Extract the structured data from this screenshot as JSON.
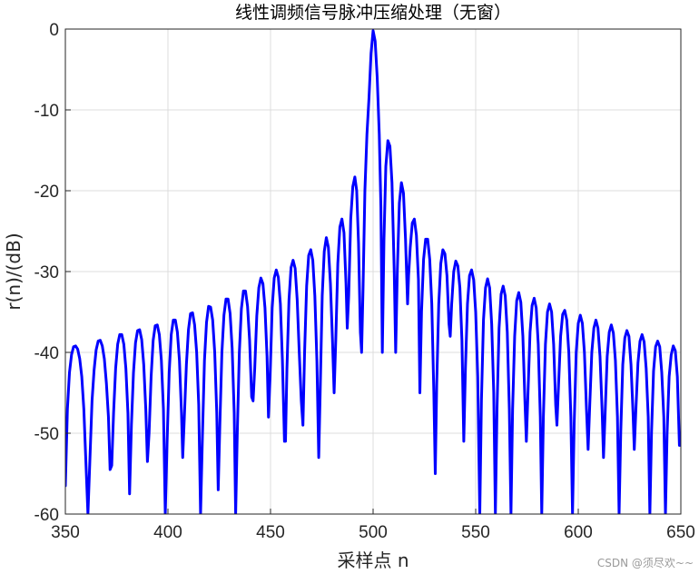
{
  "chart_data": {
    "type": "line",
    "title": "线性调频信号脉冲压缩处理（无窗）",
    "xlabel": "采样点 n",
    "ylabel": "r(n)/(dB)",
    "xlim": [
      350,
      650
    ],
    "ylim": [
      -60,
      0
    ],
    "xticks": [
      350,
      400,
      450,
      500,
      550,
      600,
      650
    ],
    "yticks": [
      0,
      -10,
      -20,
      -30,
      -40,
      -50,
      -60
    ],
    "grid": true,
    "series": [
      {
        "color": "#0000FF",
        "points": [
          [
            350,
            -56.5
          ],
          [
            351,
            -47
          ],
          [
            352,
            -42.5
          ],
          [
            353,
            -40.3
          ],
          [
            354,
            -39.3
          ],
          [
            355,
            -39.2
          ],
          [
            356,
            -39.6
          ],
          [
            357,
            -40.8
          ],
          [
            358,
            -43
          ],
          [
            359,
            -47
          ],
          [
            360,
            -53.5
          ],
          [
            361,
            -60
          ],
          [
            362,
            -53
          ],
          [
            363,
            -46
          ],
          [
            364,
            -42.2
          ],
          [
            365,
            -39.7
          ],
          [
            366,
            -38.6
          ],
          [
            367,
            -38.5
          ],
          [
            368,
            -39.2
          ],
          [
            369,
            -40.8
          ],
          [
            370,
            -43.8
          ],
          [
            371,
            -48
          ],
          [
            371.8,
            -54.5
          ],
          [
            372.6,
            -54
          ],
          [
            373.5,
            -47.5
          ],
          [
            374.5,
            -42
          ],
          [
            375.5,
            -39
          ],
          [
            376.5,
            -37.8
          ],
          [
            377.5,
            -37.8
          ],
          [
            378.5,
            -39
          ],
          [
            379.5,
            -42
          ],
          [
            380.5,
            -47.5
          ],
          [
            381.3,
            -57.5
          ],
          [
            382.2,
            -49
          ],
          [
            383.2,
            -42.5
          ],
          [
            384.2,
            -38.8
          ],
          [
            385.2,
            -37.3
          ],
          [
            386.2,
            -37.2
          ],
          [
            387.2,
            -38.4
          ],
          [
            388.2,
            -41.5
          ],
          [
            389.2,
            -47
          ],
          [
            390,
            -53.5
          ],
          [
            390.8,
            -50
          ],
          [
            391.8,
            -43
          ],
          [
            392.8,
            -38.5
          ],
          [
            393.8,
            -36.7
          ],
          [
            394.8,
            -36.6
          ],
          [
            395.8,
            -37.8
          ],
          [
            396.8,
            -41
          ],
          [
            397.8,
            -47
          ],
          [
            398.7,
            -60
          ],
          [
            399.6,
            -51
          ],
          [
            400.6,
            -42.5
          ],
          [
            401.6,
            -37.8
          ],
          [
            402.6,
            -36
          ],
          [
            403.6,
            -36
          ],
          [
            404.6,
            -37.5
          ],
          [
            405.6,
            -41
          ],
          [
            406.6,
            -47.5
          ],
          [
            407.2,
            -53
          ],
          [
            408,
            -48
          ],
          [
            409,
            -41.5
          ],
          [
            410,
            -37.2
          ],
          [
            411,
            -35.2
          ],
          [
            412,
            -35.1
          ],
          [
            413,
            -36.6
          ],
          [
            414,
            -40
          ],
          [
            415,
            -46.5
          ],
          [
            415.9,
            -60
          ],
          [
            416.8,
            -50.5
          ],
          [
            417.8,
            -41
          ],
          [
            418.8,
            -36.3
          ],
          [
            419.8,
            -34.3
          ],
          [
            420.8,
            -34.4
          ],
          [
            421.8,
            -36
          ],
          [
            422.8,
            -40
          ],
          [
            423.8,
            -47.5
          ],
          [
            424.5,
            -57
          ],
          [
            425.3,
            -49
          ],
          [
            426.3,
            -40
          ],
          [
            427.3,
            -35.4
          ],
          [
            428.3,
            -33.4
          ],
          [
            429.3,
            -33.4
          ],
          [
            430.3,
            -35.2
          ],
          [
            431.3,
            -39.5
          ],
          [
            432.3,
            -47.5
          ],
          [
            433,
            -60
          ],
          [
            433.8,
            -50
          ],
          [
            434.8,
            -40
          ],
          [
            435.8,
            -34.6
          ],
          [
            436.8,
            -32.4
          ],
          [
            437.8,
            -32.4
          ],
          [
            438.8,
            -34.3
          ],
          [
            439.8,
            -38.5
          ],
          [
            440.8,
            -45.5
          ],
          [
            441.5,
            -46
          ],
          [
            442.3,
            -42
          ],
          [
            443.3,
            -35.5
          ],
          [
            444.3,
            -32
          ],
          [
            445.3,
            -30.8
          ],
          [
            446.3,
            -31.5
          ],
          [
            447.3,
            -34.5
          ],
          [
            448.3,
            -40.5
          ],
          [
            449,
            -48
          ],
          [
            449.8,
            -43
          ],
          [
            450.8,
            -34.5
          ],
          [
            451.8,
            -30.8
          ],
          [
            452.8,
            -29.8
          ],
          [
            453.8,
            -30.7
          ],
          [
            454.8,
            -34
          ],
          [
            455.8,
            -41
          ],
          [
            456.8,
            -51
          ],
          [
            457.3,
            -51
          ],
          [
            458,
            -42
          ],
          [
            459,
            -33.5
          ],
          [
            460,
            -29.5
          ],
          [
            461,
            -28.6
          ],
          [
            462,
            -29.6
          ],
          [
            463,
            -33.5
          ],
          [
            464,
            -40
          ],
          [
            465,
            -46
          ],
          [
            465.8,
            -49
          ],
          [
            466.6,
            -40
          ],
          [
            467.6,
            -31.8
          ],
          [
            468.6,
            -28
          ],
          [
            469.6,
            -27.3
          ],
          [
            470.6,
            -28.6
          ],
          [
            471.6,
            -33
          ],
          [
            472.6,
            -41
          ],
          [
            473.5,
            -53
          ],
          [
            474.2,
            -45
          ],
          [
            475.2,
            -33
          ],
          [
            476.2,
            -27.5
          ],
          [
            477.2,
            -25.8
          ],
          [
            478.2,
            -27
          ],
          [
            479.2,
            -31.5
          ],
          [
            480.2,
            -38.5
          ],
          [
            481,
            -45
          ],
          [
            481.8,
            -38.5
          ],
          [
            482.8,
            -29
          ],
          [
            483.8,
            -24.5
          ],
          [
            484.8,
            -23.5
          ],
          [
            485.8,
            -25.2
          ],
          [
            486.8,
            -31.5
          ],
          [
            487.4,
            -37
          ],
          [
            488.1,
            -33
          ],
          [
            489.1,
            -23.5
          ],
          [
            490.1,
            -19.5
          ],
          [
            491.1,
            -18.3
          ],
          [
            492,
            -20
          ],
          [
            492.9,
            -26.5
          ],
          [
            493.8,
            -37.5
          ],
          [
            494.4,
            -40
          ],
          [
            495.1,
            -32
          ],
          [
            496,
            -20
          ],
          [
            497,
            -13
          ],
          [
            498,
            -8.5
          ],
          [
            499,
            -3
          ],
          [
            500,
            -0.2
          ],
          [
            501,
            -1.5
          ],
          [
            502,
            -6
          ],
          [
            503,
            -13
          ],
          [
            503.8,
            -22
          ],
          [
            504.5,
            -40
          ],
          [
            505.3,
            -26
          ],
          [
            506.2,
            -17
          ],
          [
            507.2,
            -13.8
          ],
          [
            508.2,
            -14.5
          ],
          [
            509.2,
            -19
          ],
          [
            510.3,
            -30
          ],
          [
            511,
            -40
          ],
          [
            511.8,
            -30
          ],
          [
            512.8,
            -21.5
          ],
          [
            513.8,
            -19
          ],
          [
            514.8,
            -20.3
          ],
          [
            515.8,
            -26
          ],
          [
            516.8,
            -34
          ],
          [
            517.3,
            -30.5
          ],
          [
            518.1,
            -27
          ],
          [
            519.1,
            -24
          ],
          [
            520.1,
            -23.5
          ],
          [
            521.1,
            -25.5
          ],
          [
            522.1,
            -31
          ],
          [
            522.8,
            -45
          ],
          [
            523.6,
            -35
          ],
          [
            524.6,
            -28.5
          ],
          [
            525.6,
            -26
          ],
          [
            526.6,
            -26
          ],
          [
            527.6,
            -28.5
          ],
          [
            528.6,
            -34
          ],
          [
            529.6,
            -45
          ],
          [
            530.3,
            -55
          ],
          [
            531,
            -44
          ],
          [
            532,
            -34
          ],
          [
            533,
            -29
          ],
          [
            534,
            -27.3
          ],
          [
            535,
            -27.8
          ],
          [
            536,
            -30.5
          ],
          [
            537,
            -36.5
          ],
          [
            537.6,
            -38
          ],
          [
            538.3,
            -34
          ],
          [
            539.3,
            -30
          ],
          [
            540.3,
            -28.7
          ],
          [
            541.3,
            -29.3
          ],
          [
            542.3,
            -32
          ],
          [
            543.3,
            -38.5
          ],
          [
            544.2,
            -51
          ],
          [
            545,
            -42
          ],
          [
            546,
            -34
          ],
          [
            547,
            -30.5
          ],
          [
            548,
            -29.8
          ],
          [
            549,
            -31
          ],
          [
            550,
            -35
          ],
          [
            551,
            -43
          ],
          [
            552,
            -60
          ],
          [
            552.8,
            -46
          ],
          [
            553.8,
            -36
          ],
          [
            554.8,
            -32
          ],
          [
            555.8,
            -30.9
          ],
          [
            556.8,
            -32
          ],
          [
            557.8,
            -36.5
          ],
          [
            558.8,
            -45
          ],
          [
            559.6,
            -60
          ],
          [
            560.4,
            -47
          ],
          [
            561.4,
            -37
          ],
          [
            562.4,
            -32.8
          ],
          [
            563.4,
            -31.8
          ],
          [
            564.4,
            -33
          ],
          [
            565.4,
            -37.5
          ],
          [
            566.4,
            -47
          ],
          [
            567.2,
            -60
          ],
          [
            568,
            -47
          ],
          [
            569,
            -38
          ],
          [
            570,
            -33.6
          ],
          [
            571,
            -32.6
          ],
          [
            572,
            -33.8
          ],
          [
            573,
            -38
          ],
          [
            574,
            -46
          ],
          [
            574.7,
            -51
          ],
          [
            575.5,
            -45
          ],
          [
            576.5,
            -37.5
          ],
          [
            577.5,
            -34.2
          ],
          [
            578.5,
            -33.3
          ],
          [
            579.5,
            -34.5
          ],
          [
            580.5,
            -39
          ],
          [
            581.5,
            -48
          ],
          [
            582.2,
            -60
          ],
          [
            583,
            -48
          ],
          [
            584,
            -39
          ],
          [
            585,
            -35
          ],
          [
            586,
            -34
          ],
          [
            587,
            -35
          ],
          [
            588,
            -39
          ],
          [
            589,
            -46.5
          ],
          [
            589.6,
            -49
          ],
          [
            590.4,
            -44
          ],
          [
            591.4,
            -38
          ],
          [
            592.4,
            -35.3
          ],
          [
            593.4,
            -34.8
          ],
          [
            594.4,
            -36
          ],
          [
            595.4,
            -40
          ],
          [
            596.4,
            -48
          ],
          [
            597.2,
            -60
          ],
          [
            598,
            -49
          ],
          [
            599,
            -40
          ],
          [
            600,
            -36.4
          ],
          [
            601,
            -35.4
          ],
          [
            602,
            -36.4
          ],
          [
            603,
            -40
          ],
          [
            604,
            -47
          ],
          [
            604.8,
            -52
          ],
          [
            605.6,
            -46.5
          ],
          [
            606.6,
            -40
          ],
          [
            607.6,
            -37
          ],
          [
            608.6,
            -36
          ],
          [
            609.6,
            -37
          ],
          [
            610.6,
            -40.5
          ],
          [
            611.6,
            -47
          ],
          [
            612.3,
            -53
          ],
          [
            613.1,
            -47.5
          ],
          [
            614.1,
            -40.5
          ],
          [
            615.1,
            -37.5
          ],
          [
            616.1,
            -36.6
          ],
          [
            617.1,
            -37.6
          ],
          [
            618.1,
            -41
          ],
          [
            619.1,
            -48
          ],
          [
            619.9,
            -60
          ],
          [
            620.7,
            -50
          ],
          [
            621.7,
            -41.5
          ],
          [
            622.7,
            -38.2
          ],
          [
            623.7,
            -37.3
          ],
          [
            624.7,
            -38
          ],
          [
            625.7,
            -41.5
          ],
          [
            626.7,
            -47.5
          ],
          [
            627.3,
            -52
          ],
          [
            628.1,
            -47
          ],
          [
            629.1,
            -41.3
          ],
          [
            630.1,
            -38.6
          ],
          [
            631.1,
            -37.8
          ],
          [
            632.1,
            -38.7
          ],
          [
            633.1,
            -42
          ],
          [
            634.1,
            -48
          ],
          [
            634.9,
            -60
          ],
          [
            635.7,
            -50
          ],
          [
            636.7,
            -42.3
          ],
          [
            637.7,
            -39.3
          ],
          [
            638.7,
            -38.6
          ],
          [
            639.7,
            -39.3
          ],
          [
            640.7,
            -42.5
          ],
          [
            641.7,
            -48
          ],
          [
            642.5,
            -60
          ],
          [
            643.3,
            -50
          ],
          [
            644.3,
            -43
          ],
          [
            645.3,
            -40.3
          ],
          [
            646.3,
            -39.2
          ],
          [
            647.3,
            -39.8
          ],
          [
            648.3,
            -43
          ],
          [
            649.3,
            -51.5
          ],
          [
            650,
            -51.5
          ]
        ]
      }
    ]
  },
  "watermark": "CSDN @须尽欢~~"
}
